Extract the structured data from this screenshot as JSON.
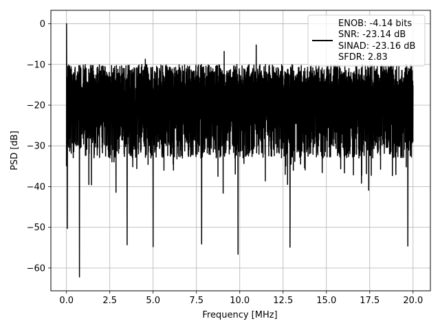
{
  "chart_data": {
    "type": "line",
    "xlabel": "Frequency [MHz]",
    "ylabel": "PSD [dB]",
    "xlim": [
      -0.9,
      21.0
    ],
    "ylim": [
      -65.6,
      3.3
    ],
    "xticks": [
      0.0,
      2.5,
      5.0,
      7.5,
      10.0,
      12.5,
      15.0,
      17.5,
      20.0
    ],
    "xtick_labels": [
      "0.0",
      "2.5",
      "5.0",
      "7.5",
      "10.0",
      "12.5",
      "15.0",
      "17.5",
      "20.0"
    ],
    "yticks": [
      0,
      -10,
      -20,
      -30,
      -40,
      -50,
      -60
    ],
    "ytick_labels": [
      "0",
      "−10",
      "−20",
      "−30",
      "−40",
      "−50",
      "−60"
    ],
    "grid": true,
    "legend_position": "top-right",
    "series": [
      {
        "color": "#000000",
        "x_start": 0.0,
        "x_end": 20.0,
        "noise_floor_band": [
          -45,
          -12
        ],
        "peaks": [
          {
            "x": 0.0,
            "y": 0.0
          },
          {
            "x": 9.1,
            "y": -6.8
          },
          {
            "x": 10.95,
            "y": -5.2
          },
          {
            "x": 4.55,
            "y": -8.7
          }
        ],
        "dips": [
          {
            "x": 0.75,
            "y": -62.2
          },
          {
            "x": 9.9,
            "y": -56.6
          },
          {
            "x": 0.05,
            "y": -50.3
          },
          {
            "x": 5.0,
            "y": -54.8
          },
          {
            "x": 3.5,
            "y": -54.3
          },
          {
            "x": 12.9,
            "y": -54.9
          },
          {
            "x": 7.8,
            "y": -54.1
          },
          {
            "x": 19.7,
            "y": -54.6
          }
        ]
      }
    ],
    "legend_lines": [
      "ENOB: -4.14 bits",
      "SNR: -23.14 dB",
      "SINAD: -23.16 dB",
      "SFDR: 2.83"
    ]
  }
}
